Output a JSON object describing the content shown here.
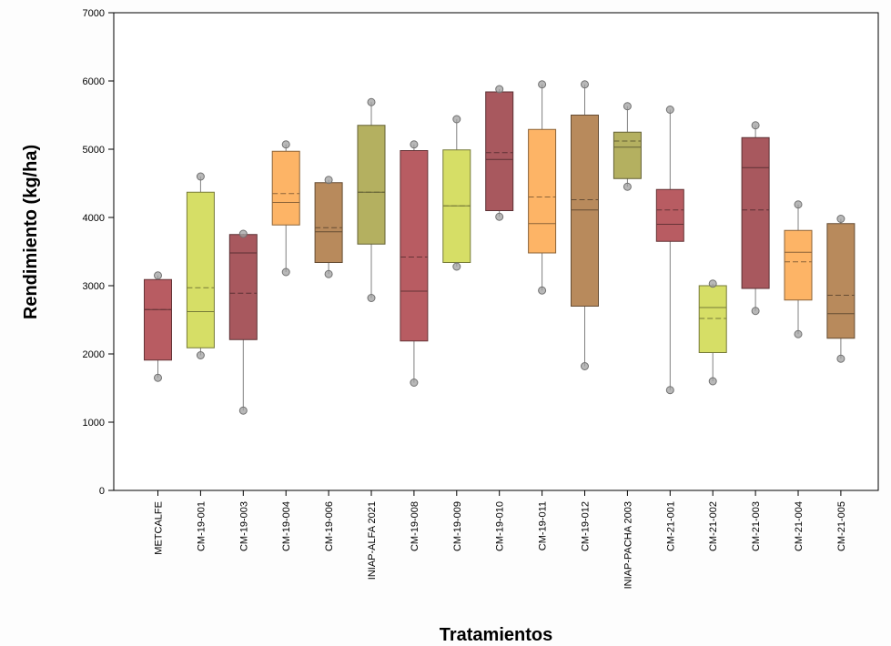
{
  "chart_data": {
    "type": "box",
    "xlabel": "Tratamientos",
    "ylabel": "Rendimiento (kg/ha)",
    "ylim": [
      0,
      7000
    ],
    "yticks": [
      0,
      1000,
      2000,
      3000,
      4000,
      5000,
      6000,
      7000
    ],
    "grid": false,
    "legend": "none",
    "colors": {
      "red": "#b85c62",
      "yellowgreen": "#d6de66",
      "maroon": "#a8585e",
      "orange": "#fdb466",
      "tan": "#b88a5c",
      "olive": "#b4b060"
    },
    "categories": [
      "METCALFE",
      "CM-19-001",
      "CM-19-003",
      "CM-19-004",
      "CM-19-006",
      "INIAP-ALFA 2021",
      "CM-19-008",
      "CM-19-009",
      "CM-19-010",
      "CM-19-011",
      "CM-19-012",
      "INIAP-PACHA 2003",
      "CM-21-001",
      "CM-21-002",
      "CM-21-003",
      "CM-21-004",
      "CM-21-005"
    ],
    "boxes": [
      {
        "color": "red",
        "whisker_low": 1650,
        "q1": 1910,
        "median": 2650,
        "mean": 2650,
        "q3": 3090,
        "whisker_high": 3150,
        "outliers": [
          1650,
          3150
        ]
      },
      {
        "color": "yellowgreen",
        "whisker_low": 1980,
        "q1": 2090,
        "median": 2620,
        "mean": 2970,
        "q3": 4370,
        "whisker_high": 4600,
        "outliers": [
          1980,
          4600
        ]
      },
      {
        "color": "maroon",
        "whisker_low": 1170,
        "q1": 2210,
        "median": 3480,
        "mean": 2890,
        "q3": 3750,
        "whisker_high": 3760,
        "outliers": [
          1170,
          3760
        ]
      },
      {
        "color": "orange",
        "whisker_low": 3200,
        "q1": 3890,
        "median": 4220,
        "mean": 4350,
        "q3": 4970,
        "whisker_high": 5070,
        "outliers": [
          3200,
          5070
        ]
      },
      {
        "color": "tan",
        "whisker_low": 3170,
        "q1": 3340,
        "median": 3790,
        "mean": 3850,
        "q3": 4510,
        "whisker_high": 4550,
        "outliers": [
          3170,
          4550
        ]
      },
      {
        "color": "olive",
        "whisker_low": 2820,
        "q1": 3610,
        "median": 4370,
        "mean": 4370,
        "q3": 5350,
        "whisker_high": 5690,
        "outliers": [
          2820,
          5690
        ]
      },
      {
        "color": "red",
        "whisker_low": 1580,
        "q1": 2190,
        "median": 2920,
        "mean": 3420,
        "q3": 4980,
        "whisker_high": 5070,
        "outliers": [
          1580,
          5070
        ]
      },
      {
        "color": "yellowgreen",
        "whisker_low": 3280,
        "q1": 3340,
        "median": 4170,
        "mean": 4170,
        "q3": 4990,
        "whisker_high": 5440,
        "outliers": [
          3280,
          5440
        ]
      },
      {
        "color": "maroon",
        "whisker_low": 4010,
        "q1": 4100,
        "median": 4850,
        "mean": 4950,
        "q3": 5840,
        "whisker_high": 5880,
        "outliers": [
          4010,
          5880
        ]
      },
      {
        "color": "orange",
        "whisker_low": 2930,
        "q1": 3480,
        "median": 3910,
        "mean": 4300,
        "q3": 5290,
        "whisker_high": 5950,
        "outliers": [
          2930,
          5950
        ]
      },
      {
        "color": "tan",
        "whisker_low": 1820,
        "q1": 2700,
        "median": 4110,
        "mean": 4260,
        "q3": 5500,
        "whisker_high": 5950,
        "outliers": [
          1820,
          5950
        ]
      },
      {
        "color": "olive",
        "whisker_low": 4450,
        "q1": 4570,
        "median": 5030,
        "mean": 5120,
        "q3": 5250,
        "whisker_high": 5630,
        "outliers": [
          4450,
          5630
        ]
      },
      {
        "color": "red",
        "whisker_low": 1470,
        "q1": 3650,
        "median": 3900,
        "mean": 4110,
        "q3": 4410,
        "whisker_high": 5580,
        "outliers": [
          1470,
          5580
        ]
      },
      {
        "color": "yellowgreen",
        "whisker_low": 1600,
        "q1": 2020,
        "median": 2680,
        "mean": 2520,
        "q3": 3000,
        "whisker_high": 3030,
        "outliers": [
          1600,
          3030
        ]
      },
      {
        "color": "maroon",
        "whisker_low": 2630,
        "q1": 2960,
        "median": 4730,
        "mean": 4110,
        "q3": 5170,
        "whisker_high": 5350,
        "outliers": [
          2630,
          5350
        ]
      },
      {
        "color": "orange",
        "whisker_low": 2290,
        "q1": 2790,
        "median": 3490,
        "mean": 3350,
        "q3": 3810,
        "whisker_high": 4190,
        "outliers": [
          2290,
          4190
        ]
      },
      {
        "color": "tan",
        "whisker_low": 1930,
        "q1": 2230,
        "median": 2590,
        "mean": 2860,
        "q3": 3910,
        "whisker_high": 3980,
        "outliers": [
          1930,
          3980
        ]
      }
    ]
  }
}
